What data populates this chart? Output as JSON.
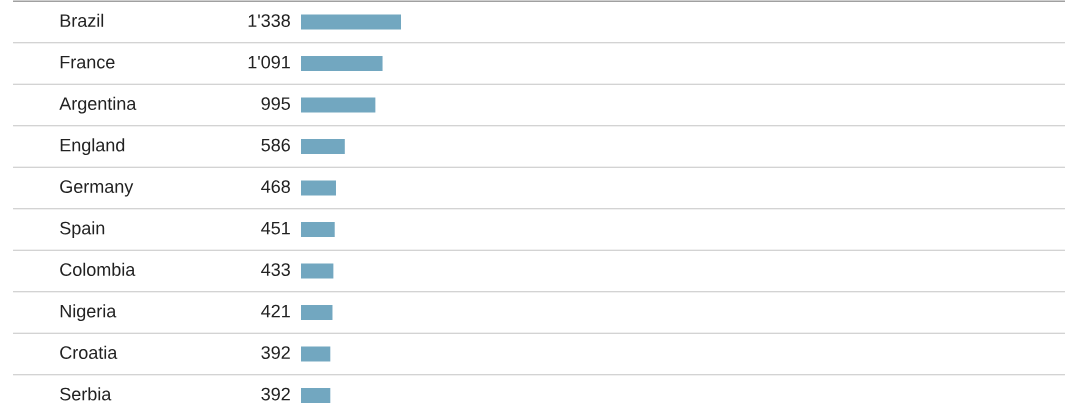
{
  "chart_data": {
    "type": "bar",
    "orientation": "horizontal",
    "tick_labels": "y",
    "categories": [
      "Brazil",
      "France",
      "Argentina",
      "England",
      "Germany",
      "Spain",
      "Colombia",
      "Nigeria",
      "Croatia",
      "Serbia"
    ],
    "values": [
      1338,
      1091,
      995,
      586,
      468,
      451,
      433,
      421,
      392,
      392
    ],
    "value_labels": [
      "1'338",
      "1'091",
      "995",
      "586",
      "468",
      "451",
      "433",
      "421",
      "392",
      "392"
    ],
    "color": "#72a7c0"
  }
}
